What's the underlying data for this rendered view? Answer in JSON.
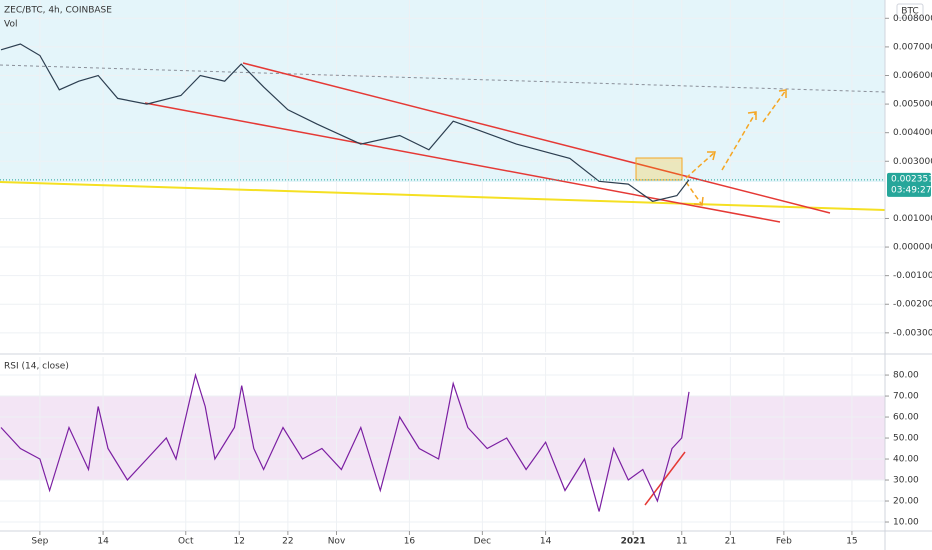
{
  "header": {
    "symbol": "ZEC/BTC, 4h, COINBASE",
    "volume_label": "Vol",
    "currency": "BTC"
  },
  "chart_data": [
    {
      "type": "line",
      "color": "#2c3e50",
      "x": [
        -8,
        -4,
        0,
        4,
        8,
        12,
        16,
        22,
        29,
        33,
        38,
        41.4,
        46,
        51,
        57,
        66,
        74,
        80,
        85,
        90,
        98,
        109,
        115,
        121,
        126,
        131,
        133.5
      ],
      "values": [
        0.0069,
        0.0071,
        0.0067,
        0.0055,
        0.0058,
        0.006,
        0.0052,
        0.005,
        0.0053,
        0.006,
        0.0058,
        0.0064,
        0.0056,
        0.0048,
        0.0043,
        0.0036,
        0.0039,
        0.0034,
        0.0044,
        0.0041,
        0.0036,
        0.0031,
        0.0023,
        0.0022,
        0.0016,
        0.0018,
        0.002351
      ],
      "xlim": [
        -8.2,
        173.8
      ],
      "ylim": [
        -0.00367,
        0.00864
      ],
      "yticks": [
        {
          "value": 0.008,
          "label": "0.008000"
        },
        {
          "value": 0.007,
          "label": "0.007000"
        },
        {
          "value": 0.006,
          "label": "0.006000"
        },
        {
          "value": 0.005,
          "label": "0.005000"
        },
        {
          "value": 0.004,
          "label": "0.004000"
        },
        {
          "value": 0.003,
          "label": "0.003000"
        },
        {
          "value": 0.001,
          "label": "0.001000"
        },
        {
          "value": 0,
          "label": "0.000000"
        },
        {
          "value": -0.001,
          "label": "-0.001000"
        },
        {
          "value": -0.002,
          "label": "-0.002000"
        },
        {
          "value": -0.003,
          "label": "-0.003000"
        }
      ],
      "last_value": 0.002351,
      "countdown": "03:49:27",
      "grid": true
    },
    {
      "type": "line",
      "title": "RSI (14, close)",
      "color": "#7b1fa2",
      "x": [
        -8,
        -4,
        0,
        2,
        6,
        10,
        12,
        14,
        18,
        22,
        26,
        28,
        30,
        32,
        34,
        36,
        40,
        41.5,
        44,
        46,
        50,
        54,
        58,
        62,
        66,
        70,
        74,
        78,
        82,
        85,
        88,
        92,
        96,
        100,
        104,
        108,
        112,
        115,
        118,
        121,
        124,
        127,
        130,
        132,
        133.5
      ],
      "values": [
        55,
        45,
        40,
        25,
        55,
        35,
        65,
        45,
        30,
        40,
        50,
        40,
        60,
        80,
        65,
        40,
        55,
        75,
        45,
        35,
        55,
        40,
        45,
        35,
        55,
        25,
        60,
        45,
        40,
        76,
        55,
        45,
        50,
        35,
        48,
        25,
        40,
        15,
        45,
        30,
        35,
        20,
        45,
        50,
        72
      ],
      "xlim": [
        -8.2,
        173.8
      ],
      "ylim": [
        6.2,
        88.6
      ],
      "band": [
        30,
        70
      ],
      "yticks": [
        {
          "value": 80,
          "label": "80.00"
        },
        {
          "value": 70,
          "label": "70.00"
        },
        {
          "value": 60,
          "label": "60.00"
        },
        {
          "value": 50,
          "label": "50.00"
        },
        {
          "value": 40,
          "label": "40.00"
        },
        {
          "value": 30,
          "label": "30.00"
        },
        {
          "value": 20,
          "label": "20.00"
        },
        {
          "value": 10,
          "label": "10.00"
        }
      ],
      "xticks": [
        {
          "value": 0,
          "label": "Sep"
        },
        {
          "value": 13,
          "label": "14"
        },
        {
          "value": 30,
          "label": "Oct"
        },
        {
          "value": 41,
          "label": "12"
        },
        {
          "value": 51,
          "label": "22"
        },
        {
          "value": 61,
          "label": "Nov"
        },
        {
          "value": 76,
          "label": "16"
        },
        {
          "value": 91,
          "label": "Dec"
        },
        {
          "value": 104,
          "label": "14"
        },
        {
          "value": 122,
          "label": "2021"
        },
        {
          "value": 132,
          "label": "11"
        },
        {
          "value": 142,
          "label": "21"
        },
        {
          "value": 153,
          "label": "Feb"
        },
        {
          "value": 167,
          "label": "15"
        }
      ],
      "grid": true
    }
  ]
}
